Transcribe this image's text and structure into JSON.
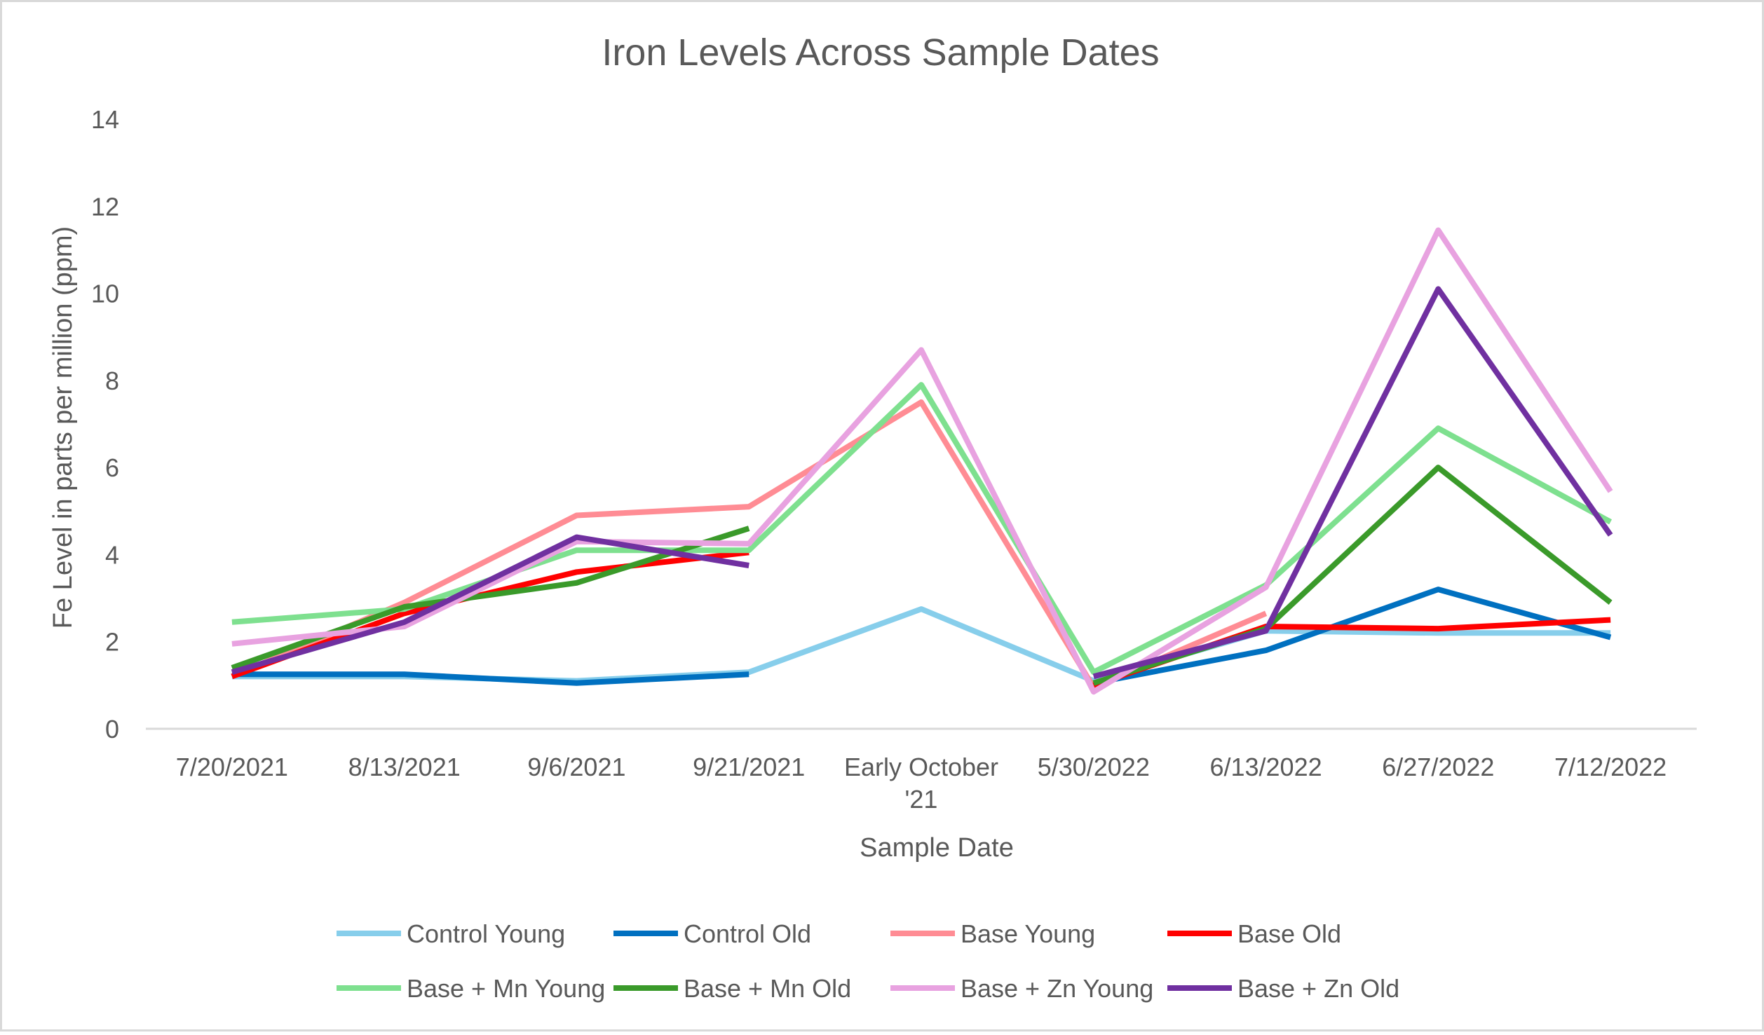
{
  "chart_data": {
    "type": "line",
    "title": "Iron Levels Across Sample Dates",
    "xlabel": "Sample Date",
    "ylabel": "Fe Level in parts per million (ppm)",
    "ylim": [
      0,
      14
    ],
    "yticks": [
      0,
      2,
      4,
      6,
      8,
      10,
      12,
      14
    ],
    "grid": false,
    "legend_position": "bottom",
    "categories": [
      "7/20/2021",
      "8/13/2021",
      "9/6/2021",
      "9/21/2021",
      "Early October '21",
      "5/30/2022",
      "6/13/2022",
      "6/27/2022",
      "7/12/2022"
    ],
    "series": [
      {
        "name": "Control Young",
        "color": "#87CEEB",
        "values": [
          1.2,
          1.2,
          1.1,
          1.3,
          2.75,
          1.1,
          2.25,
          2.2,
          2.2
        ]
      },
      {
        "name": "Control Old",
        "color": "#0070C0",
        "values": [
          1.25,
          1.25,
          1.05,
          1.25,
          null,
          1.05,
          1.8,
          3.2,
          2.1
        ]
      },
      {
        "name": "Base Young",
        "color": "#FF8C94",
        "values": [
          1.2,
          2.9,
          4.9,
          5.1,
          7.5,
          0.95,
          2.65,
          null,
          null
        ]
      },
      {
        "name": "Base Old",
        "color": "#FF0000",
        "values": [
          1.2,
          2.65,
          3.6,
          4.05,
          null,
          1.0,
          2.35,
          2.3,
          2.5
        ]
      },
      {
        "name": "Base + Mn Young",
        "color": "#7EE08F",
        "values": [
          2.45,
          2.75,
          4.1,
          4.1,
          7.9,
          1.3,
          3.3,
          6.9,
          4.75
        ]
      },
      {
        "name": "Base + Mn Old",
        "color": "#3A9A2A",
        "values": [
          1.4,
          2.8,
          3.35,
          4.6,
          null,
          1.05,
          2.3,
          6.0,
          2.9
        ]
      },
      {
        "name": "Base + Zn Young",
        "color": "#E8A2E0",
        "values": [
          1.95,
          2.35,
          4.3,
          4.25,
          8.7,
          0.85,
          3.25,
          11.45,
          5.45
        ]
      },
      {
        "name": "Base + Zn Old",
        "color": "#7030A0",
        "values": [
          1.3,
          2.45,
          4.4,
          3.75,
          null,
          1.2,
          2.25,
          10.1,
          4.45
        ]
      }
    ]
  }
}
